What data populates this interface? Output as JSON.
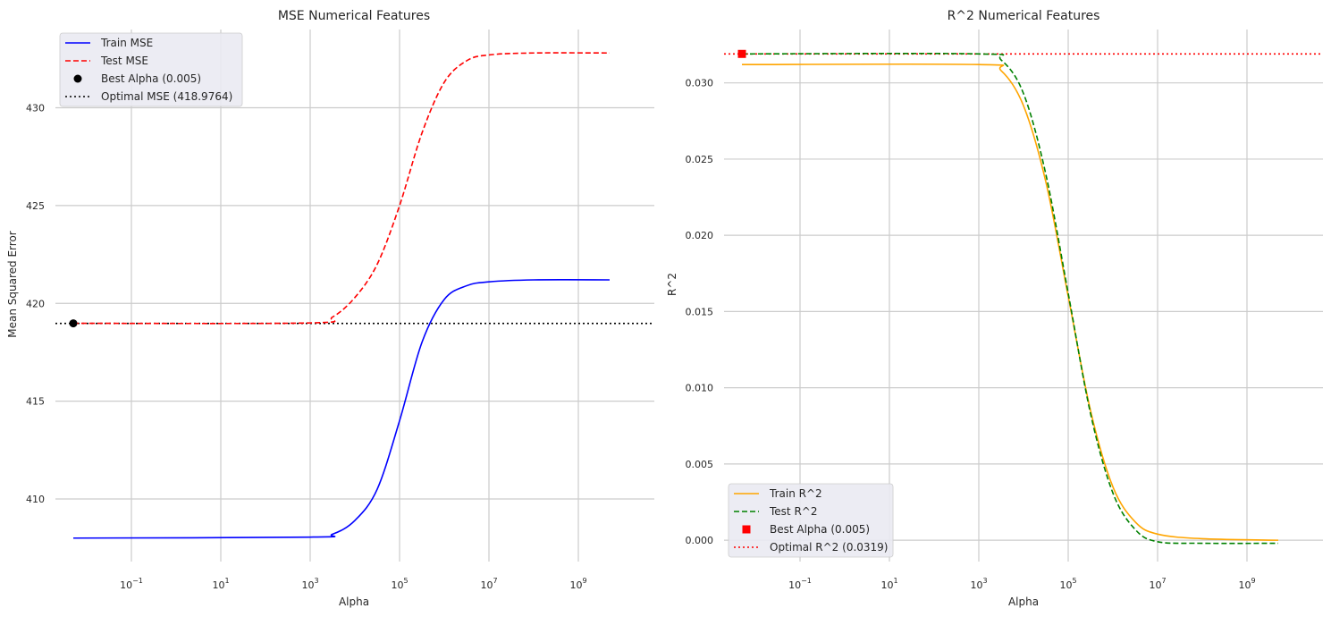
{
  "chart_data": [
    {
      "type": "line",
      "title": "MSE Numerical Features",
      "xlabel": "Alpha",
      "ylabel": "Mean Squared Error",
      "xscale": "log",
      "xlim_exp": [
        -2.7,
        10.7
      ],
      "ylim": [
        406.8,
        434.0
      ],
      "xticks": [
        {
          "exp": -1,
          "label_base": "10",
          "label_exp": "−1"
        },
        {
          "exp": 1,
          "label_base": "10",
          "label_exp": "1"
        },
        {
          "exp": 3,
          "label_base": "10",
          "label_exp": "3"
        },
        {
          "exp": 5,
          "label_base": "10",
          "label_exp": "5"
        },
        {
          "exp": 7,
          "label_base": "10",
          "label_exp": "7"
        },
        {
          "exp": 9,
          "label_base": "10",
          "label_exp": "9"
        }
      ],
      "yticks": [
        410,
        415,
        420,
        425,
        430
      ],
      "grid": true,
      "legend_position": "top-left",
      "series": [
        {
          "name": "Train MSE",
          "style": "solid",
          "color": "#0000ff",
          "alpha_exp": [
            -2.3,
            3.0,
            3.5,
            4.0,
            4.5,
            5.0,
            5.5,
            6.0,
            6.5,
            7.0,
            8.0,
            9.7
          ],
          "values": [
            408.0,
            408.05,
            408.2,
            408.9,
            410.5,
            414.0,
            418.0,
            420.2,
            420.9,
            421.1,
            421.2,
            421.2
          ]
        },
        {
          "name": "Test MSE",
          "style": "dashed",
          "color": "#ff0000",
          "alpha_exp": [
            -2.3,
            3.0,
            3.5,
            4.0,
            4.5,
            5.0,
            5.5,
            6.0,
            6.5,
            7.0,
            8.0,
            9.7
          ],
          "values": [
            418.98,
            419.0,
            419.3,
            420.3,
            422.0,
            425.0,
            428.7,
            431.3,
            432.4,
            432.7,
            432.8,
            432.8
          ]
        }
      ],
      "best_point": {
        "name": "Best Alpha (0.005)",
        "alpha_exp": -2.3,
        "value": 418.98,
        "color": "#000000",
        "marker": "circle"
      },
      "hline": {
        "name": "Optimal MSE (418.9764)",
        "value": 418.9764,
        "style": "dotted",
        "color": "#000000"
      }
    },
    {
      "type": "line",
      "title": "R^2 Numerical Features",
      "xlabel": "Alpha",
      "ylabel": "R^2",
      "xscale": "log",
      "xlim_exp": [
        -2.7,
        10.7
      ],
      "ylim": [
        -0.0014,
        0.0335
      ],
      "xticks": [
        {
          "exp": -1,
          "label_base": "10",
          "label_exp": "−1"
        },
        {
          "exp": 1,
          "label_base": "10",
          "label_exp": "1"
        },
        {
          "exp": 3,
          "label_base": "10",
          "label_exp": "3"
        },
        {
          "exp": 5,
          "label_base": "10",
          "label_exp": "5"
        },
        {
          "exp": 7,
          "label_base": "10",
          "label_exp": "7"
        },
        {
          "exp": 9,
          "label_base": "10",
          "label_exp": "9"
        }
      ],
      "yticks": [
        "0.000",
        "0.005",
        "0.010",
        "0.015",
        "0.020",
        "0.025",
        "0.030"
      ],
      "grid": true,
      "legend_position": "bottom-left",
      "series": [
        {
          "name": "Train R^2",
          "style": "solid",
          "color": "#ffa500",
          "alpha_exp": [
            -2.3,
            3.0,
            3.5,
            4.0,
            4.5,
            5.0,
            5.5,
            6.0,
            6.5,
            7.0,
            8.0,
            9.7
          ],
          "values": [
            0.0312,
            0.0312,
            0.0308,
            0.0285,
            0.0235,
            0.016,
            0.0085,
            0.0035,
            0.0012,
            0.0004,
            0.0001,
            0.0
          ]
        },
        {
          "name": "Test R^2",
          "style": "dashed",
          "color": "#008000",
          "alpha_exp": [
            -2.3,
            3.0,
            3.5,
            4.0,
            4.5,
            5.0,
            5.5,
            6.0,
            6.5,
            7.0,
            8.0,
            9.7
          ],
          "values": [
            0.0319,
            0.0319,
            0.0315,
            0.0293,
            0.024,
            0.0162,
            0.0083,
            0.0031,
            0.0007,
            -0.0001,
            -0.0002,
            -0.0002
          ]
        }
      ],
      "best_point": {
        "name": "Best Alpha (0.005)",
        "alpha_exp": -2.3,
        "value": 0.0319,
        "color": "#ff0000",
        "marker": "square"
      },
      "hline": {
        "name": "Optimal R^2 (0.0319)",
        "value": 0.0319,
        "style": "dotted",
        "color": "#ff0000"
      }
    }
  ]
}
